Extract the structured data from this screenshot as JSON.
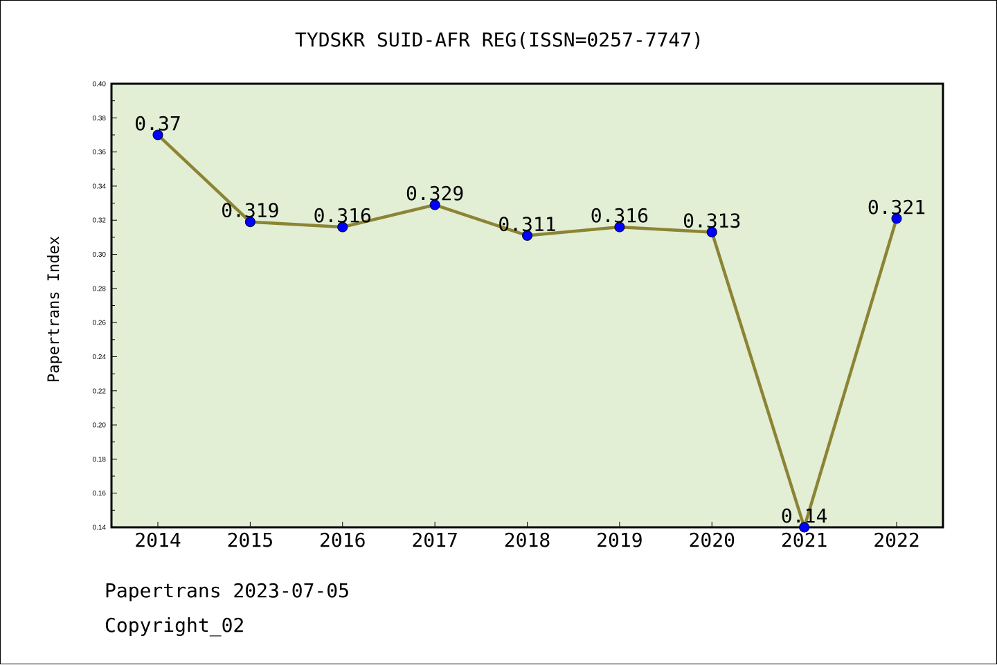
{
  "chart_data": {
    "type": "line",
    "title": "TYDSKR SUID-AFR REG(ISSN=0257-7747)",
    "xlabel": "",
    "ylabel": "Papertrans Index",
    "categories": [
      "2014",
      "2015",
      "2016",
      "2017",
      "2018",
      "2019",
      "2020",
      "2021",
      "2022"
    ],
    "series": [
      {
        "values": [
          0.37,
          0.319,
          0.316,
          0.329,
          0.311,
          0.316,
          0.313,
          0.14,
          0.321
        ],
        "labels": [
          "0.37",
          "0.319",
          "0.316",
          "0.329",
          "0.311",
          "0.316",
          "0.313",
          "0.14",
          "0.321"
        ]
      }
    ],
    "ylim": [
      0.14,
      0.4
    ],
    "yticks": [
      "0.14",
      "0.16",
      "0.18",
      "0.20",
      "0.22",
      "0.24",
      "0.26",
      "0.28",
      "0.30",
      "0.32",
      "0.34",
      "0.36",
      "0.38",
      "0.40"
    ],
    "grid": false,
    "colors": {
      "plot_background": "#e2efd5",
      "line": "#8c8435",
      "marker": "#0000ff"
    }
  },
  "footer": {
    "date_line": "Papertrans 2023-07-05",
    "copyright_line": "Copyright_02"
  }
}
